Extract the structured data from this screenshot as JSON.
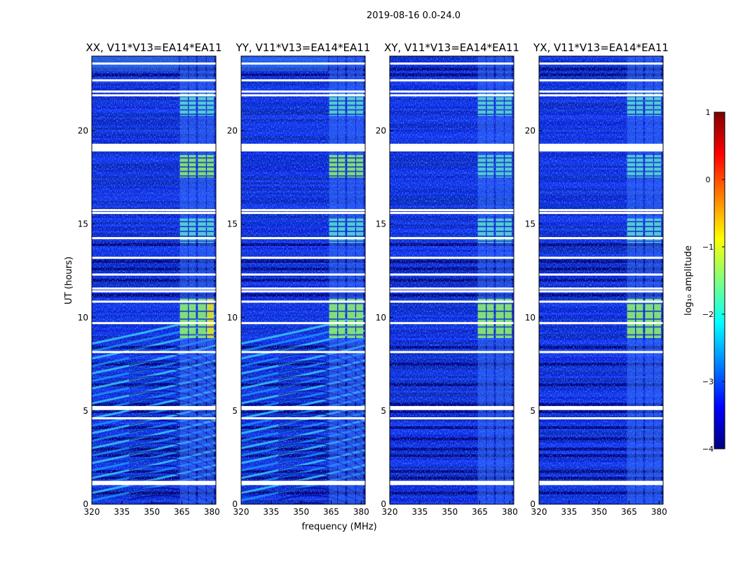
{
  "chart_data": {
    "type": "heatmap",
    "suptitle": "2019-08-16 0.0-24.0",
    "xlabel": "frequency (MHz)",
    "ylabel": "UT (hours)",
    "xlim": [
      320,
      382
    ],
    "ylim": [
      0,
      24
    ],
    "xticks": [
      320,
      335,
      350,
      365,
      380
    ],
    "yticks": [
      0,
      5,
      10,
      15,
      20
    ],
    "panels": [
      {
        "title": "XX, V11*V13=EA14*EA11",
        "kind": "parallel"
      },
      {
        "title": "YY, V11*V13=EA14*EA11",
        "kind": "parallel"
      },
      {
        "title": "XY, V11*V13=EA14*EA11",
        "kind": "cross"
      },
      {
        "title": "YX, V11*V13=EA14*EA11",
        "kind": "cross"
      }
    ],
    "rfi_blocks_mhz": [
      [
        364,
        368
      ],
      [
        368.5,
        372
      ],
      [
        373,
        377
      ],
      [
        377.5,
        381
      ]
    ],
    "rfi_time_ranges_h": [
      [
        8.9,
        11.0
      ],
      [
        14.0,
        15.3
      ],
      [
        17.5,
        18.7
      ],
      [
        20.8,
        22.0
      ]
    ],
    "flagged_rows_h": [
      1.15,
      4.6,
      5.1,
      5.2,
      8.15,
      9.7,
      10.85,
      11.4,
      11.55,
      12.3,
      13.2,
      14.25,
      15.6,
      15.75,
      18.95,
      19.1,
      19.25,
      21.9,
      22.1,
      22.7,
      23.6
    ],
    "colorbar": {
      "label": "log₁₀ amplitude",
      "range": [
        -4,
        1
      ],
      "ticks": [
        "1",
        "0",
        "−1",
        "−2",
        "−3",
        "−4"
      ],
      "colors": [
        "#00007f",
        "#0000ff",
        "#007fff",
        "#00ffff",
        "#7fff7f",
        "#ffff00",
        "#ff7f00",
        "#ff0000",
        "#7f0000"
      ]
    }
  }
}
